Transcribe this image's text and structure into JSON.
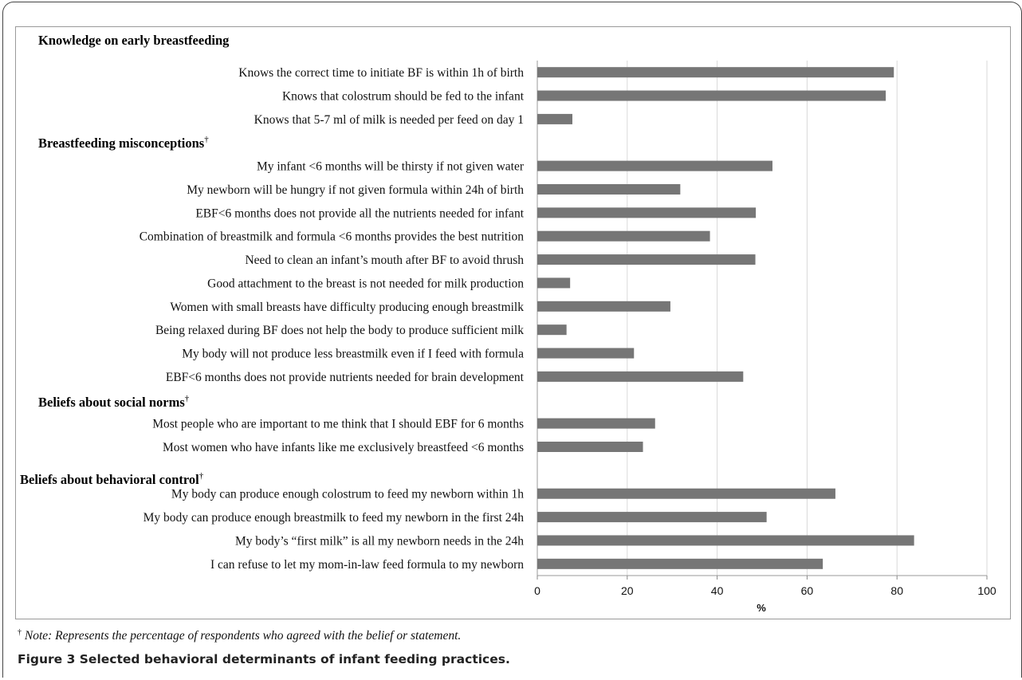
{
  "chart_data": {
    "type": "bar",
    "orientation": "horizontal",
    "title": "Knowledge on early breastfeeding",
    "xlabel": "%",
    "xlim": [
      0,
      100
    ],
    "xticks": [
      "0",
      "20",
      "40",
      "60",
      "80",
      "100"
    ],
    "grid": "vertical",
    "bar_color": "#767676",
    "dagger": "†",
    "sections": [
      {
        "heading": "",
        "items": [
          {
            "label": "Knows the correct time to initiate BF is within 1h of birth",
            "value": 79.3
          },
          {
            "label": "Knows that colostrum should be fed to the infant",
            "value": 77.5
          },
          {
            "label": "Knows that 5-7 ml of milk is needed per feed on day 1",
            "value": 7.8
          }
        ]
      },
      {
        "heading": "Breastfeeding misconceptions",
        "items": [
          {
            "label": "My infant <6 months will be thirsty if not given water",
            "value": 52.3
          },
          {
            "label": "My newborn will be hungry if not given formula within 24h of birth",
            "value": 31.8
          },
          {
            "label": "EBF<6 months does not provide all the nutrients needed for infant",
            "value": 48.6
          },
          {
            "label": "Combination of breastmilk and formula <6 months provides the best nutrition",
            "value": 38.4
          },
          {
            "label": "Need to clean an infant’s mouth after BF to avoid thrush",
            "value": 48.5
          },
          {
            "label": "Good attachment to the breast is not needed for milk production",
            "value": 7.3
          },
          {
            "label": "Women with small breasts have difficulty producing enough breastmilk",
            "value": 29.6
          },
          {
            "label": "Being relaxed during BF does not help the body to produce sufficient milk",
            "value": 6.5
          },
          {
            "label": "My body will not produce less breastmilk even if I feed with formula",
            "value": 21.5
          },
          {
            "label": "EBF<6 months does not provide nutrients needed for brain development",
            "value": 45.8
          }
        ]
      },
      {
        "heading": "Beliefs about social norms",
        "items": [
          {
            "label": "Most people who are important to me think that I should EBF for 6 months",
            "value": 26.2
          },
          {
            "label": "Most women who have infants like me exclusively breastfeed <6 months",
            "value": 23.5
          }
        ]
      },
      {
        "heading": "Beliefs about behavioral control",
        "items": [
          {
            "label": "My body can produce enough colostrum to feed my newborn within 1h",
            "value": 66.3
          },
          {
            "label": "My body can produce enough breastmilk to feed my newborn in the first 24h",
            "value": 51.0
          },
          {
            "label": "My body’s “first milk” is all my newborn needs in the 24h",
            "value": 83.8
          },
          {
            "label": "I can refuse to let my mom-in-law feed formula to my newborn",
            "value": 63.5
          }
        ]
      }
    ]
  },
  "note": {
    "symbol": "†",
    "text": " Note: Represents the percentage of respondents who agreed with the belief or statement."
  },
  "caption": "Figure 3 Selected behavioral determinants of infant feeding practices."
}
